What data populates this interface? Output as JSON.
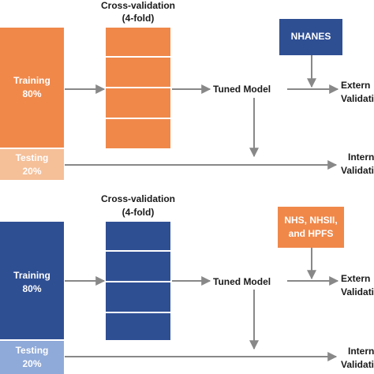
{
  "colors": {
    "orange": "#f0884a",
    "orange_light": "#f5bf98",
    "navy": "#2f4f93",
    "navy_light": "#8fa9d8",
    "arrow": "#888888"
  },
  "top": {
    "cv_title": "Cross-validation",
    "cv_subtitle": "(4-fold)",
    "training_label": "Training",
    "training_pct": "80%",
    "testing_label": "Testing",
    "testing_pct": "20%",
    "tuned_model": "Tuned Model",
    "external_source": [
      "NHANES"
    ],
    "external_label": [
      "Extern",
      "Validati"
    ],
    "internal_label": [
      "Intern",
      "Validati"
    ]
  },
  "bottom": {
    "cv_title": "Cross-validation",
    "cv_subtitle": "(4-fold)",
    "training_label": "Training",
    "training_pct": "80%",
    "testing_label": "Testing",
    "testing_pct": "20%",
    "tuned_model": "Tuned Model",
    "external_source": [
      "NHS, NHSII,",
      "and HPFS"
    ],
    "external_label": [
      "Extern",
      "Validati"
    ],
    "internal_label": [
      "Intern",
      "Validati"
    ]
  }
}
